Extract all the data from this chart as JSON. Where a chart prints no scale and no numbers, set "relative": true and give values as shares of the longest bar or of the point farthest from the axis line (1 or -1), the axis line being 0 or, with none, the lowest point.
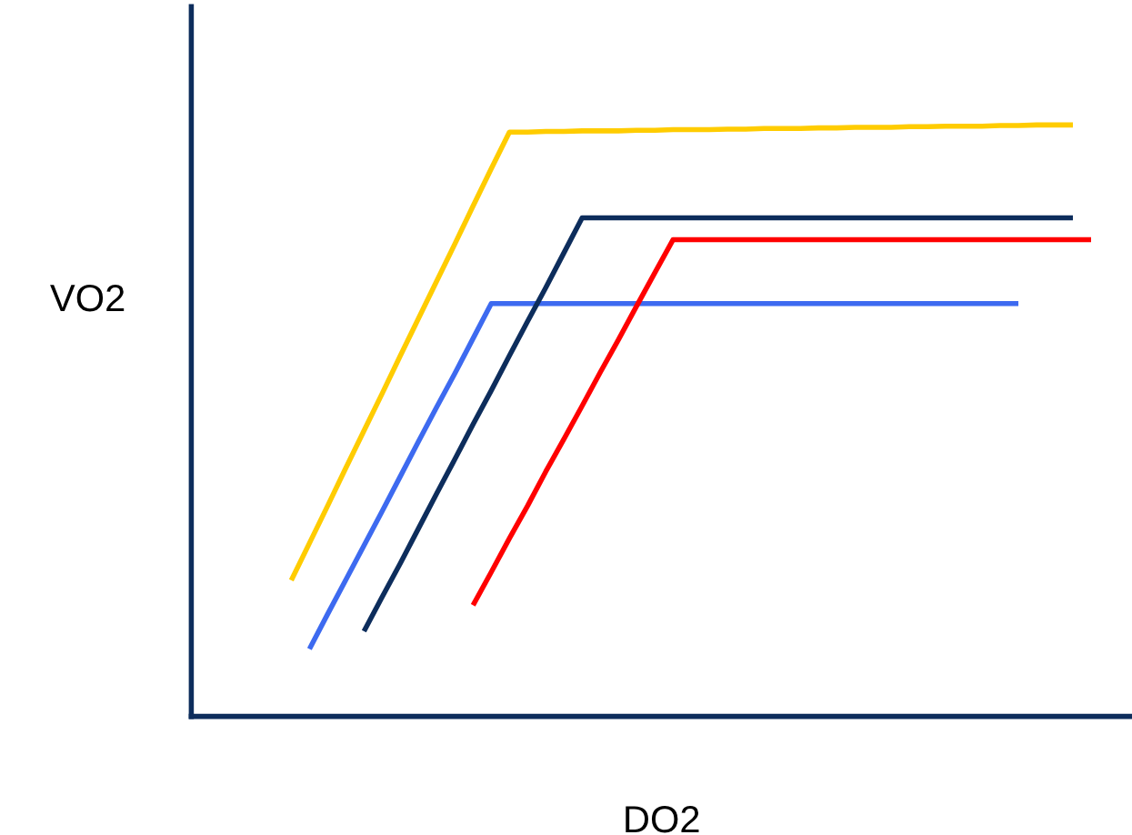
{
  "chart_data": {
    "type": "line",
    "relative": true,
    "xlabel": "DO2",
    "ylabel": "VO2",
    "tick_labels": false,
    "line_style": "solid",
    "categories": [
      null,
      null,
      null,
      null,
      null,
      null,
      null,
      null,
      null,
      null,
      null,
      null,
      null,
      null,
      null,
      null,
      null,
      null,
      null,
      null,
      null,
      null,
      null,
      null,
      null,
      null,
      null,
      null,
      null,
      null,
      null,
      null,
      null,
      null,
      null,
      null,
      null,
      null,
      null,
      null,
      null,
      null,
      null,
      null,
      null,
      null
    ],
    "series": [
      {
        "color": "#ffcc00",
        "values": [
          null,
          0.23,
          0.293,
          0.356,
          0.42,
          0.483,
          0.546,
          0.61,
          0.673,
          0.736,
          0.799,
          0.863,
          0.926,
          0.988,
          0.988,
          0.989,
          0.989,
          0.99,
          0.99,
          0.99,
          0.991,
          0.991,
          0.992,
          0.992,
          0.992,
          0.993,
          0.993,
          0.994,
          0.994,
          0.994,
          0.995,
          0.995,
          0.996,
          0.996,
          0.996,
          0.997,
          0.997,
          0.998,
          0.998,
          0.998,
          0.999,
          0.999,
          1.0,
          1.0,
          1.0,
          null
        ]
      },
      {
        "color": "#3d6af0",
        "values": [
          null,
          null,
          0.114,
          0.173,
          0.231,
          0.289,
          0.347,
          0.406,
          0.465,
          0.523,
          0.58,
          0.639,
          0.698,
          0.698,
          0.698,
          0.698,
          0.698,
          0.698,
          0.698,
          0.698,
          0.698,
          0.698,
          0.698,
          0.698,
          0.698,
          0.698,
          0.698,
          0.698,
          0.698,
          0.698,
          0.698,
          0.698,
          0.698,
          0.698,
          0.698,
          0.698,
          0.698,
          0.698,
          0.698,
          0.698,
          0.698,
          0.698,
          null,
          null,
          null,
          null
        ]
      },
      {
        "color": "#0d2d5c",
        "values": [
          null,
          null,
          null,
          null,
          null,
          0.144,
          0.202,
          0.259,
          0.318,
          0.377,
          0.435,
          0.494,
          0.551,
          0.61,
          0.668,
          0.725,
          0.784,
          0.843,
          0.843,
          0.843,
          0.843,
          0.843,
          0.843,
          0.843,
          0.843,
          0.843,
          0.843,
          0.843,
          0.843,
          0.843,
          0.843,
          0.843,
          0.843,
          0.843,
          0.843,
          0.843,
          0.843,
          0.843,
          0.843,
          0.843,
          0.843,
          0.843,
          0.843,
          0.843,
          0.843,
          null
        ]
      },
      {
        "color": "#ff0000",
        "values": [
          null,
          null,
          null,
          null,
          null,
          null,
          null,
          null,
          null,
          null,
          null,
          0.188,
          0.244,
          0.301,
          0.356,
          0.414,
          0.469,
          0.525,
          0.582,
          0.637,
          0.694,
          0.75,
          0.806,
          0.806,
          0.806,
          0.806,
          0.806,
          0.806,
          0.806,
          0.806,
          0.806,
          0.806,
          0.806,
          0.806,
          0.806,
          0.806,
          0.806,
          0.806,
          0.806,
          0.806,
          0.806,
          0.806,
          0.806,
          0.806,
          0.806,
          0.806
        ]
      }
    ]
  }
}
